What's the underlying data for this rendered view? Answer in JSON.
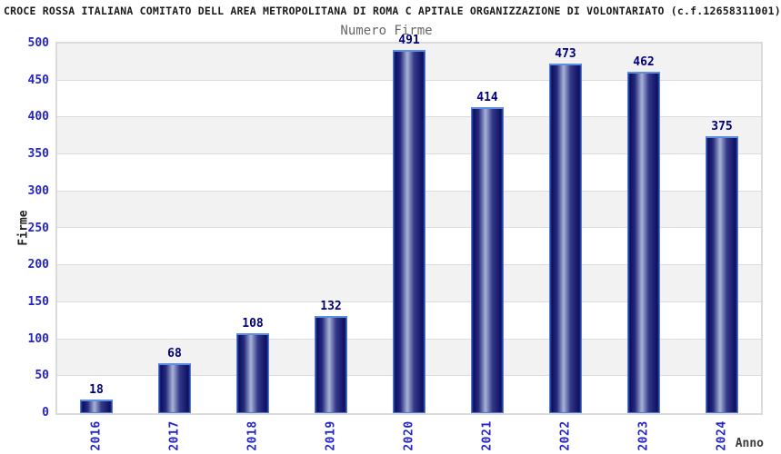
{
  "header": {
    "title": "CROCE ROSSA ITALIANA COMITATO DELL AREA METROPOLITANA DI ROMA C APITALE ORGANIZZAZIONE DI VOLONTARIATO (c.f.12658311001)"
  },
  "chart_data": {
    "type": "bar",
    "title": "Numero Firme",
    "xlabel": "Anno",
    "ylabel": "Firme",
    "categories": [
      "2016",
      "2017",
      "2018",
      "2019",
      "2020",
      "2021",
      "2022",
      "2023",
      "2024"
    ],
    "values": [
      18,
      68,
      108,
      132,
      491,
      414,
      473,
      462,
      375
    ],
    "ylim": [
      0,
      500
    ],
    "ytick_step": 50,
    "y_ticks": [
      0,
      50,
      100,
      150,
      200,
      250,
      300,
      350,
      400,
      450,
      500
    ],
    "grid": "horizontal-bands-alternating",
    "legend": "none",
    "colors": {
      "bar_dark": "#0e0e62",
      "bar_highlight": "#a9b3d8",
      "bar_outline": "#4f7bd9",
      "bar_top_edge": "#5d8fe0",
      "tick_label": "#2424cc",
      "value_label": "#00007d",
      "axis_title": "#3a3a3a",
      "chart_title": "#666666",
      "page_title": "#1a1a1a",
      "band_gray": "#f2f2f2",
      "band_white": "#ffffff",
      "grid_line": "#dcdcdc",
      "plot_border": "#dbdbdb"
    }
  }
}
